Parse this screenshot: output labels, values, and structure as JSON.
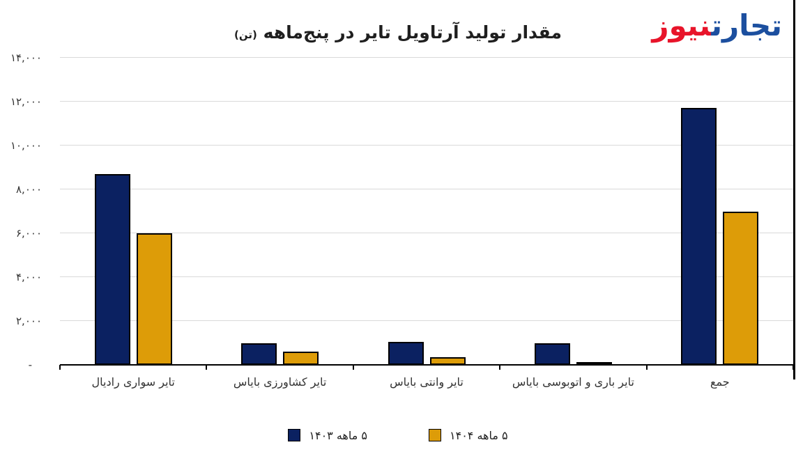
{
  "logo": {
    "word_blue": "تجارت",
    "word_red": "نیوز",
    "color_blue": "#1c4f9f",
    "color_red": "#e8142a"
  },
  "chart_data": {
    "type": "bar",
    "title": "مقدار تولید آرتاویل تایر در پنج‌ماهه",
    "title_unit": "(تن)",
    "categories": [
      "تایر سواری رادیال",
      "تایر کشاورزی بایاس",
      "تایر وانتی بایاس",
      "تایر باری و اتوبوسی بایاس",
      "جمع"
    ],
    "series": [
      {
        "name": "۵ ماهه ۱۴۰۳",
        "color": "#0b2161",
        "values": [
          8700,
          975,
          1050,
          1000,
          11725
        ]
      },
      {
        "name": "۵ ماهه ۱۴۰۴",
        "color": "#dd9c08",
        "values": [
          6000,
          590,
          360,
          75,
          7000
        ]
      }
    ],
    "ylim": [
      0,
      14000
    ],
    "ytick_step": 2000,
    "ytick_labels_bottom_to_top": [
      "-",
      "۲,۰۰۰",
      "۴,۰۰۰",
      "۶,۰۰۰",
      "۸,۰۰۰",
      "۱۰,۰۰۰",
      "۱۲,۰۰۰",
      "۱۴,۰۰۰"
    ],
    "grid": true,
    "legend_position": "bottom",
    "gridline_color": "#d9d9d9",
    "axis_color": "#000000",
    "bar_outline_color": "#000000"
  }
}
